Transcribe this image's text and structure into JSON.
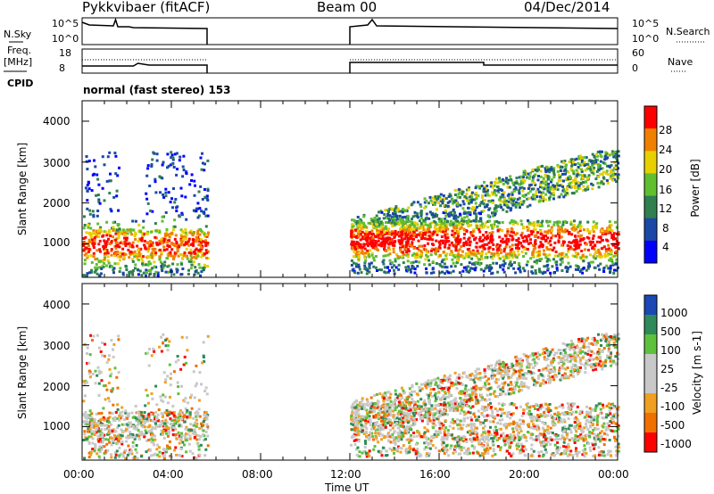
{
  "header": {
    "station": "Pykkvibaer (fitACF)",
    "beam": "Beam 00",
    "date": "04/Dec/2014",
    "cpid_label": "CPID",
    "mode_text": "normal (fast stereo) 153"
  },
  "aux_panels": {
    "nsky_label": "N.Sky",
    "nsky_ticks": [
      "10^5",
      "10^0"
    ],
    "nsearch_label": "N.Search",
    "nsearch_ticks": [
      "10^5",
      "10^0"
    ],
    "freq_label_1": "Freq.",
    "freq_label_2": "[MHz]",
    "freq_ticks": [
      "18",
      "8"
    ],
    "nave_label": "Nave",
    "nave_ticks": [
      "60",
      "0"
    ]
  },
  "chart_data": [
    {
      "type": "heatmap",
      "name": "Power",
      "ylabel": "Slant Range [km]",
      "y_ticks": [
        "4000",
        "3000",
        "2000",
        "1000"
      ],
      "ylim": [
        180,
        4500
      ],
      "colorbar_label": "Power [dB]",
      "colorbar_ticks": [
        "28",
        "24",
        "20",
        "16",
        "12",
        "8",
        "4"
      ],
      "colors": [
        "#0000ff",
        "#1a48a6",
        "#2f7f4f",
        "#5fbf2f",
        "#e8d000",
        "#f08000",
        "#ff0000"
      ]
    },
    {
      "type": "heatmap",
      "name": "Velocity",
      "ylabel": "Slant Range [km]",
      "y_ticks": [
        "4000",
        "3000",
        "2000",
        "1000"
      ],
      "ylim": [
        180,
        4500
      ],
      "colorbar_label": "Velocity [m s-1]",
      "colorbar_ticks": [
        "1000",
        "500",
        "100",
        "25",
        "-25",
        "-100",
        "-500",
        "-1000"
      ],
      "colors": [
        "#1a48b4",
        "#2f8a5a",
        "#5cc23c",
        "#c8c8c8",
        "#c8c8c8",
        "#f0a020",
        "#f07000",
        "#ff0000"
      ]
    }
  ],
  "x_axis": {
    "label": "Time UT",
    "ticks": [
      "00:00",
      "04:00",
      "08:00",
      "12:00",
      "16:00",
      "20:00",
      "00:00"
    ]
  }
}
